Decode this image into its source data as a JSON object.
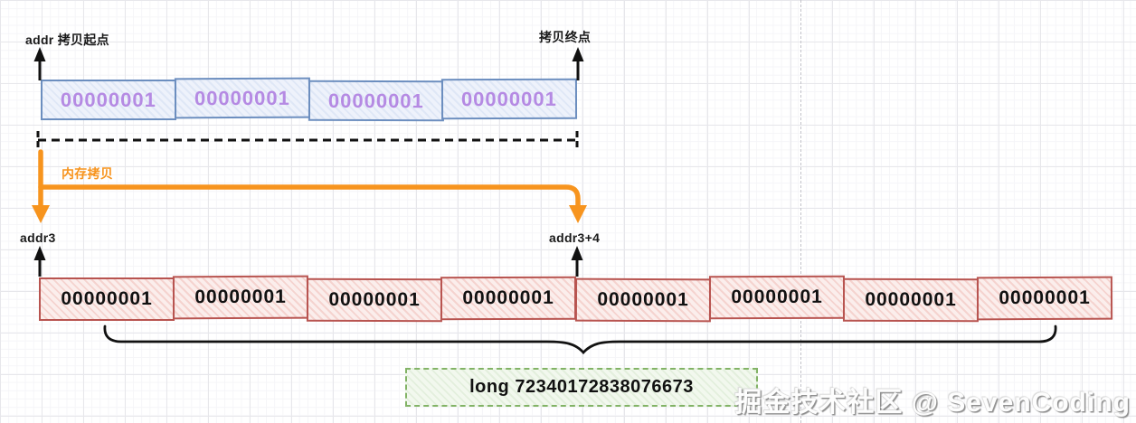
{
  "diagram": {
    "source": {
      "start_label": "addr 拷贝起点",
      "end_label": "拷贝终点",
      "cells": [
        "00000001",
        "00000001",
        "00000001",
        "00000001"
      ]
    },
    "copy": {
      "label": "内存拷贝"
    },
    "dest": {
      "start_label": "addr3",
      "offset_label": "addr3+4",
      "cells": [
        "00000001",
        "00000001",
        "00000001",
        "00000001",
        "00000001",
        "00000001",
        "00000001",
        "00000001"
      ]
    },
    "result": {
      "label": "long 72340172838076673"
    },
    "watermark": "掘金技术社区 @ SevenCoding",
    "colors": {
      "orange": "#f7941e",
      "blue_border": "#6c8ebf",
      "purple_text": "#b58ae3",
      "red_border": "#b85450",
      "green_border": "#82b366"
    }
  }
}
